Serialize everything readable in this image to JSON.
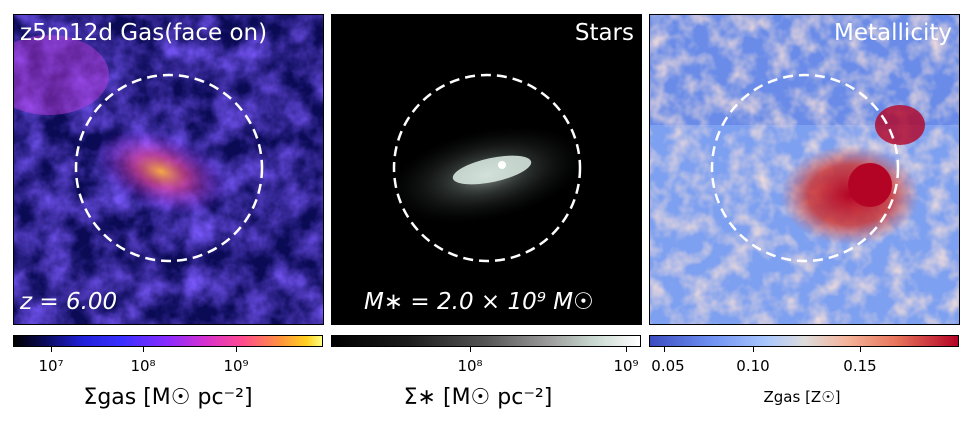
{
  "panels": {
    "gas": {
      "title": "z5m12d  Gas(face on)",
      "annotation": "z = 6.00"
    },
    "stars": {
      "title": "Stars",
      "annotation": "M∗ = 2.0 × 10⁹ M☉"
    },
    "metallicity": {
      "title": "Metallicity"
    }
  },
  "colorbars": {
    "gas": {
      "ticks": [
        "10⁷",
        "10⁸",
        "10⁹"
      ],
      "label": "Σgas [M☉ pc⁻²]",
      "colormap": "plasma-like"
    },
    "stars": {
      "ticks": [
        "10⁸",
        "10⁹"
      ],
      "label": "Σ∗ [M☉ pc⁻²]",
      "colormap": "bone"
    },
    "metallicity": {
      "ticks": [
        "0.05",
        "0.10",
        "0.15"
      ],
      "label": "Zgas [Z☉]",
      "colormap": "coolwarm"
    }
  },
  "colors": {
    "circle": "#ffffff",
    "background": "#ffffff"
  }
}
